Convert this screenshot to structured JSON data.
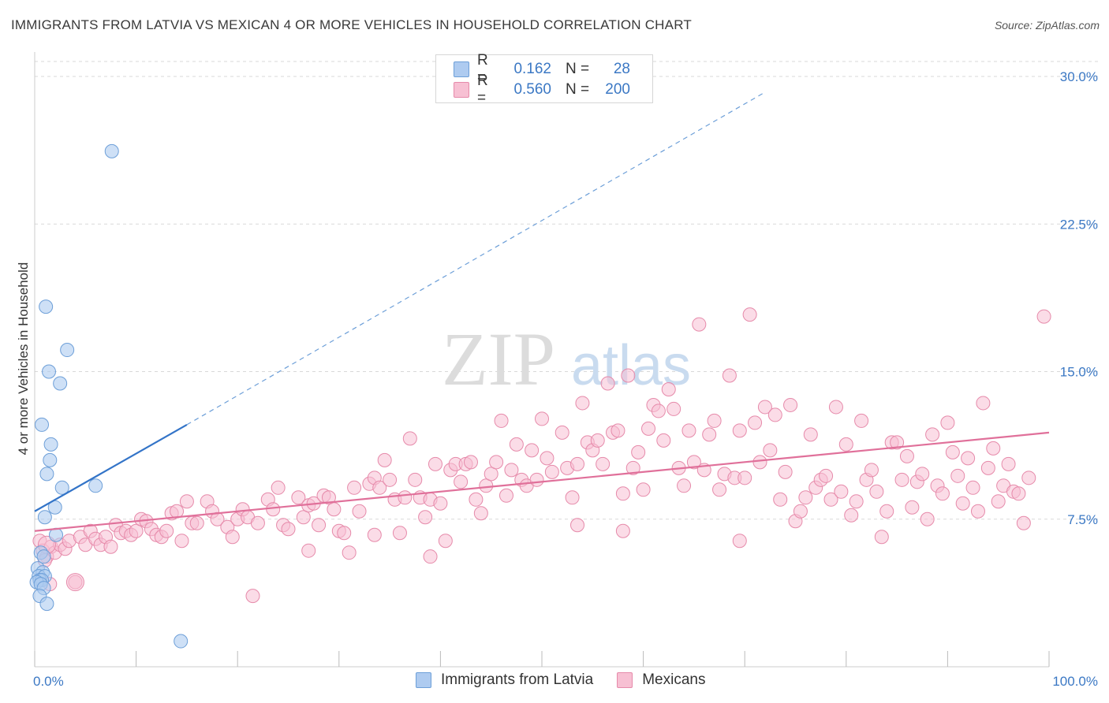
{
  "title": "IMMIGRANTS FROM LATVIA VS MEXICAN 4 OR MORE VEHICLES IN HOUSEHOLD CORRELATION CHART",
  "source": "Source: ZipAtlas.com",
  "watermark": {
    "zip": "ZIP",
    "atlas": "atlas"
  },
  "legend": {
    "rows": [
      {
        "r_label": "R =",
        "r_value": "0.162",
        "n_label": "N =",
        "n_value": "28"
      },
      {
        "r_label": "R =",
        "r_value": "0.560",
        "n_label": "N =",
        "n_value": "200"
      }
    ]
  },
  "bottom_legend": [
    "Immigrants from Latvia",
    "Mexicans"
  ],
  "colors": {
    "blue_fill": "#aecbf0",
    "blue_stroke": "#6d9fd8",
    "blue_line": "#3374c8",
    "pink_fill": "#f7c0d3",
    "pink_stroke": "#e68aaa",
    "pink_line": "#e0709a",
    "grid": "#d9d9d9",
    "tick_label": "#3b78c4"
  },
  "chart_data": {
    "type": "scatter",
    "title": "IMMIGRANTS FROM LATVIA VS MEXICAN 4 OR MORE VEHICLES IN HOUSEHOLD CORRELATION CHART",
    "xlabel": "",
    "ylabel": "4 or more Vehicles in Household",
    "xlim": [
      0,
      100
    ],
    "ylim": [
      0,
      30
    ],
    "x_tick_labels": [
      "0.0%",
      "100.0%"
    ],
    "y_ticks": [
      7.5,
      15.0,
      22.5,
      30.0
    ],
    "y_tick_labels": [
      "7.5%",
      "15.0%",
      "22.5%",
      "30.0%"
    ],
    "series": [
      {
        "name": "Immigrants from Latvia",
        "R": 0.162,
        "N": 28,
        "trend": {
          "x0": 0,
          "y0": 7.9,
          "x1": 15,
          "y1": 12.3,
          "dashed_to_x": 72,
          "dashed_to_y": 29.2
        },
        "points": [
          [
            7.6,
            26.2
          ],
          [
            1.1,
            18.3
          ],
          [
            3.2,
            16.1
          ],
          [
            1.4,
            15.0
          ],
          [
            2.5,
            14.4
          ],
          [
            0.7,
            12.3
          ],
          [
            1.6,
            11.3
          ],
          [
            1.5,
            10.5
          ],
          [
            1.2,
            9.8
          ],
          [
            2.7,
            9.1
          ],
          [
            6.0,
            9.2
          ],
          [
            2.0,
            8.1
          ],
          [
            1.0,
            7.6
          ],
          [
            2.1,
            6.7
          ],
          [
            0.6,
            5.8
          ],
          [
            0.9,
            5.6
          ],
          [
            0.3,
            5.0
          ],
          [
            0.8,
            4.8
          ],
          [
            0.4,
            4.6
          ],
          [
            1.0,
            4.6
          ],
          [
            0.5,
            4.4
          ],
          [
            0.7,
            4.4
          ],
          [
            0.2,
            4.3
          ],
          [
            0.6,
            4.2
          ],
          [
            0.9,
            4.0
          ],
          [
            0.5,
            3.6
          ],
          [
            1.2,
            3.2
          ],
          [
            14.4,
            1.3
          ]
        ]
      },
      {
        "name": "Mexicans",
        "R": 0.56,
        "N": 200,
        "trend": {
          "x0": 0,
          "y0": 6.9,
          "x1": 100,
          "y1": 11.9
        },
        "points": [
          [
            0.5,
            6.4
          ],
          [
            0.8,
            5.9
          ],
          [
            1.2,
            5.6
          ],
          [
            1.6,
            6.1
          ],
          [
            2.0,
            5.8
          ],
          [
            2.5,
            6.2
          ],
          [
            3.0,
            6.0
          ],
          [
            3.4,
            6.4
          ],
          [
            1.0,
            5.4
          ],
          [
            4.0,
            4.3
          ],
          [
            4.5,
            6.6
          ],
          [
            5.0,
            6.2
          ],
          [
            5.5,
            6.9
          ],
          [
            6.0,
            6.5
          ],
          [
            6.5,
            6.2
          ],
          [
            7.0,
            6.6
          ],
          [
            7.5,
            6.1
          ],
          [
            8.0,
            7.2
          ],
          [
            8.5,
            6.8
          ],
          [
            9.0,
            6.9
          ],
          [
            9.5,
            6.7
          ],
          [
            10.0,
            6.9
          ],
          [
            10.5,
            7.5
          ],
          [
            11.0,
            7.4
          ],
          [
            11.5,
            7.0
          ],
          [
            12.0,
            6.7
          ],
          [
            12.5,
            6.6
          ],
          [
            13.0,
            6.9
          ],
          [
            13.5,
            7.8
          ],
          [
            14.0,
            7.9
          ],
          [
            14.5,
            6.4
          ],
          [
            15.0,
            8.4
          ],
          [
            15.5,
            7.3
          ],
          [
            16.0,
            7.3
          ],
          [
            17.0,
            8.4
          ],
          [
            17.5,
            7.9
          ],
          [
            18.0,
            7.5
          ],
          [
            19.0,
            7.1
          ],
          [
            19.5,
            6.6
          ],
          [
            20.0,
            7.5
          ],
          [
            20.5,
            8.0
          ],
          [
            21.0,
            7.6
          ],
          [
            21.5,
            3.6
          ],
          [
            22.0,
            7.3
          ],
          [
            23.0,
            8.5
          ],
          [
            23.5,
            8.0
          ],
          [
            24.0,
            9.1
          ],
          [
            24.5,
            7.2
          ],
          [
            25.0,
            7.0
          ],
          [
            26.0,
            8.6
          ],
          [
            26.5,
            7.6
          ],
          [
            27.0,
            8.2
          ],
          [
            27.5,
            8.3
          ],
          [
            28.0,
            7.2
          ],
          [
            28.5,
            8.7
          ],
          [
            29.0,
            8.6
          ],
          [
            29.5,
            8.0
          ],
          [
            30.0,
            6.9
          ],
          [
            30.5,
            6.8
          ],
          [
            31.0,
            5.8
          ],
          [
            31.5,
            9.1
          ],
          [
            32.0,
            7.9
          ],
          [
            33.0,
            9.3
          ],
          [
            33.5,
            9.6
          ],
          [
            34.0,
            9.1
          ],
          [
            34.5,
            10.5
          ],
          [
            35.0,
            9.5
          ],
          [
            35.5,
            8.5
          ],
          [
            36.0,
            6.8
          ],
          [
            36.5,
            8.6
          ],
          [
            37.0,
            11.6
          ],
          [
            37.5,
            9.5
          ],
          [
            38.0,
            8.6
          ],
          [
            38.5,
            7.6
          ],
          [
            39.0,
            8.5
          ],
          [
            39.5,
            10.3
          ],
          [
            40.0,
            8.3
          ],
          [
            41.0,
            10.0
          ],
          [
            41.5,
            10.3
          ],
          [
            42.0,
            9.4
          ],
          [
            42.5,
            10.3
          ],
          [
            43.0,
            10.4
          ],
          [
            43.5,
            8.5
          ],
          [
            44.0,
            7.8
          ],
          [
            44.5,
            9.2
          ],
          [
            45.0,
            9.8
          ],
          [
            45.5,
            10.4
          ],
          [
            46.0,
            12.5
          ],
          [
            46.5,
            8.7
          ],
          [
            47.0,
            10.0
          ],
          [
            47.5,
            11.3
          ],
          [
            48.0,
            9.5
          ],
          [
            48.5,
            9.2
          ],
          [
            49.0,
            11.0
          ],
          [
            49.5,
            9.5
          ],
          [
            50.0,
            12.6
          ],
          [
            50.5,
            10.6
          ],
          [
            51.0,
            9.9
          ],
          [
            52.0,
            11.9
          ],
          [
            52.5,
            10.1
          ],
          [
            53.0,
            8.6
          ],
          [
            53.5,
            10.3
          ],
          [
            54.0,
            13.4
          ],
          [
            54.5,
            11.4
          ],
          [
            55.0,
            11.0
          ],
          [
            55.5,
            11.5
          ],
          [
            56.0,
            10.3
          ],
          [
            56.5,
            14.4
          ],
          [
            57.0,
            11.9
          ],
          [
            57.5,
            12.0
          ],
          [
            58.0,
            8.8
          ],
          [
            58.5,
            14.8
          ],
          [
            59.0,
            10.1
          ],
          [
            59.5,
            10.9
          ],
          [
            60.0,
            9.0
          ],
          [
            60.5,
            12.1
          ],
          [
            61.0,
            13.3
          ],
          [
            61.5,
            13.0
          ],
          [
            62.0,
            11.5
          ],
          [
            62.5,
            14.1
          ],
          [
            63.0,
            13.1
          ],
          [
            63.5,
            10.1
          ],
          [
            64.0,
            9.2
          ],
          [
            64.5,
            12.0
          ],
          [
            65.0,
            10.4
          ],
          [
            65.5,
            17.4
          ],
          [
            66.0,
            10.0
          ],
          [
            66.5,
            11.8
          ],
          [
            67.0,
            12.5
          ],
          [
            67.5,
            9.0
          ],
          [
            68.0,
            9.8
          ],
          [
            68.5,
            14.8
          ],
          [
            69.0,
            9.6
          ],
          [
            69.5,
            12.0
          ],
          [
            70.0,
            9.6
          ],
          [
            70.5,
            17.9
          ],
          [
            71.0,
            12.4
          ],
          [
            71.5,
            10.4
          ],
          [
            72.0,
            13.2
          ],
          [
            72.5,
            11.0
          ],
          [
            73.0,
            12.8
          ],
          [
            73.5,
            8.5
          ],
          [
            74.0,
            9.9
          ],
          [
            74.5,
            13.3
          ],
          [
            75.0,
            7.4
          ],
          [
            75.5,
            7.9
          ],
          [
            76.0,
            8.6
          ],
          [
            76.5,
            11.8
          ],
          [
            77.0,
            9.1
          ],
          [
            77.5,
            9.5
          ],
          [
            78.0,
            9.7
          ],
          [
            78.5,
            8.5
          ],
          [
            79.0,
            13.2
          ],
          [
            79.5,
            8.9
          ],
          [
            80.0,
            11.3
          ],
          [
            80.5,
            7.7
          ],
          [
            81.0,
            8.4
          ],
          [
            81.5,
            12.5
          ],
          [
            82.0,
            9.5
          ],
          [
            82.5,
            10.0
          ],
          [
            83.0,
            8.9
          ],
          [
            83.5,
            6.6
          ],
          [
            84.0,
            7.9
          ],
          [
            84.5,
            11.4
          ],
          [
            85.0,
            11.4
          ],
          [
            85.5,
            9.5
          ],
          [
            86.0,
            10.7
          ],
          [
            86.5,
            8.1
          ],
          [
            87.0,
            9.4
          ],
          [
            87.5,
            9.8
          ],
          [
            88.0,
            7.5
          ],
          [
            88.5,
            11.8
          ],
          [
            89.0,
            9.2
          ],
          [
            89.5,
            8.8
          ],
          [
            90.0,
            12.4
          ],
          [
            90.5,
            10.9
          ],
          [
            91.0,
            9.7
          ],
          [
            91.5,
            8.3
          ],
          [
            92.0,
            10.6
          ],
          [
            92.5,
            9.1
          ],
          [
            93.0,
            7.9
          ],
          [
            93.5,
            13.4
          ],
          [
            94.0,
            10.1
          ],
          [
            94.5,
            11.1
          ],
          [
            95.0,
            8.4
          ],
          [
            95.5,
            9.2
          ],
          [
            96.0,
            10.3
          ],
          [
            96.5,
            8.9
          ],
          [
            97.0,
            8.8
          ],
          [
            97.5,
            7.3
          ],
          [
            98.0,
            9.6
          ],
          [
            99.5,
            17.8
          ],
          [
            53.5,
            7.2
          ],
          [
            39.0,
            5.6
          ],
          [
            27.0,
            5.9
          ],
          [
            33.5,
            6.7
          ],
          [
            40.5,
            6.4
          ],
          [
            58.0,
            6.9
          ],
          [
            69.5,
            6.4
          ],
          [
            1.5,
            4.2
          ]
        ]
      }
    ]
  }
}
